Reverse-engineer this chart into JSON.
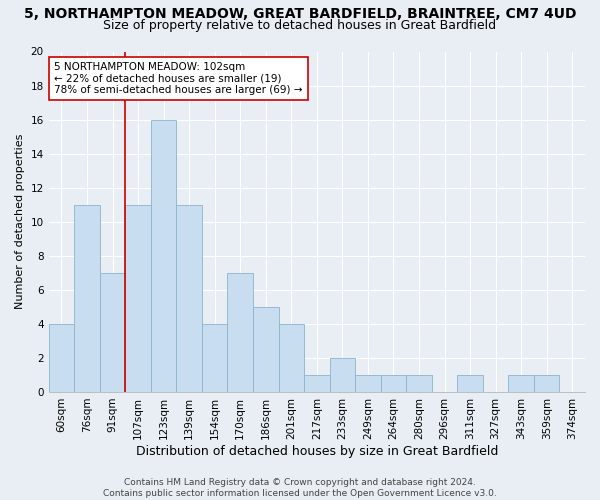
{
  "title": "5, NORTHAMPTON MEADOW, GREAT BARDFIELD, BRAINTREE, CM7 4UD",
  "subtitle": "Size of property relative to detached houses in Great Bardfield",
  "xlabel": "Distribution of detached houses by size in Great Bardfield",
  "ylabel": "Number of detached properties",
  "bar_color": "#c8ddef",
  "bar_edge_color": "#8ab4cc",
  "categories": [
    "60sqm",
    "76sqm",
    "91sqm",
    "107sqm",
    "123sqm",
    "139sqm",
    "154sqm",
    "170sqm",
    "186sqm",
    "201sqm",
    "217sqm",
    "233sqm",
    "249sqm",
    "264sqm",
    "280sqm",
    "296sqm",
    "311sqm",
    "327sqm",
    "343sqm",
    "359sqm",
    "374sqm"
  ],
  "values": [
    4,
    11,
    7,
    11,
    16,
    11,
    4,
    7,
    5,
    4,
    1,
    2,
    1,
    1,
    1,
    0,
    1,
    0,
    1,
    1,
    0
  ],
  "ylim": [
    0,
    20
  ],
  "yticks": [
    0,
    2,
    4,
    6,
    8,
    10,
    12,
    14,
    16,
    18,
    20
  ],
  "vline_x_index": 2.5,
  "vline_color": "#cc0000",
  "annotation_text": "5 NORTHAMPTON MEADOW: 102sqm\n← 22% of detached houses are smaller (19)\n78% of semi-detached houses are larger (69) →",
  "annotation_box_color": "#ffffff",
  "annotation_box_edge": "#cc0000",
  "background_color": "#e8eef4",
  "grid_color": "#d0d8e0",
  "footer_text": "Contains HM Land Registry data © Crown copyright and database right 2024.\nContains public sector information licensed under the Open Government Licence v3.0.",
  "title_fontsize": 10,
  "subtitle_fontsize": 9,
  "xlabel_fontsize": 9,
  "ylabel_fontsize": 8,
  "tick_fontsize": 7.5,
  "annotation_fontsize": 7.5,
  "footer_fontsize": 6.5
}
